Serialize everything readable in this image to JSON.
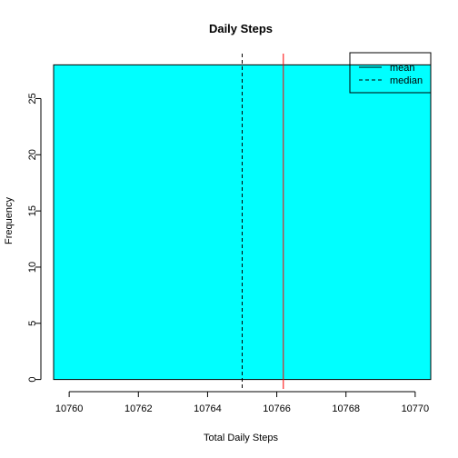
{
  "chart_data": {
    "type": "bar",
    "title": "Daily Steps",
    "xlabel": "Total Daily Steps",
    "ylabel": "Frequency",
    "xlim": [
      10759.55,
      10770.45
    ],
    "ylim": [
      -0.84,
      29.0
    ],
    "bars": [
      {
        "x0": 10759.55,
        "x1": 10770.45,
        "value": 28
      }
    ],
    "x_ticks": [
      {
        "value": 10760,
        "label": "10760"
      },
      {
        "value": 10762,
        "label": "10762"
      },
      {
        "value": 10764,
        "label": "10764"
      },
      {
        "value": 10766,
        "label": "10766"
      },
      {
        "value": 10768,
        "label": "10768"
      },
      {
        "value": 10770,
        "label": "10770"
      }
    ],
    "y_ticks": [
      {
        "value": 0,
        "label": "0"
      },
      {
        "value": 5,
        "label": "5"
      },
      {
        "value": 10,
        "label": "10"
      },
      {
        "value": 15,
        "label": "15"
      },
      {
        "value": 20,
        "label": "20"
      },
      {
        "value": 25,
        "label": "25"
      }
    ],
    "reference_lines": [
      {
        "name": "mean",
        "value": 10766.19,
        "color": "#ff0000",
        "style": "solid"
      },
      {
        "name": "median",
        "value": 10765,
        "color": "#000000",
        "style": "dashed"
      }
    ],
    "legend": {
      "position": "top-right",
      "entries": [
        {
          "label": "mean",
          "style": "solid"
        },
        {
          "label": "median",
          "style": "dashed"
        }
      ]
    },
    "bar_color": "#00ffff",
    "grid": false
  }
}
